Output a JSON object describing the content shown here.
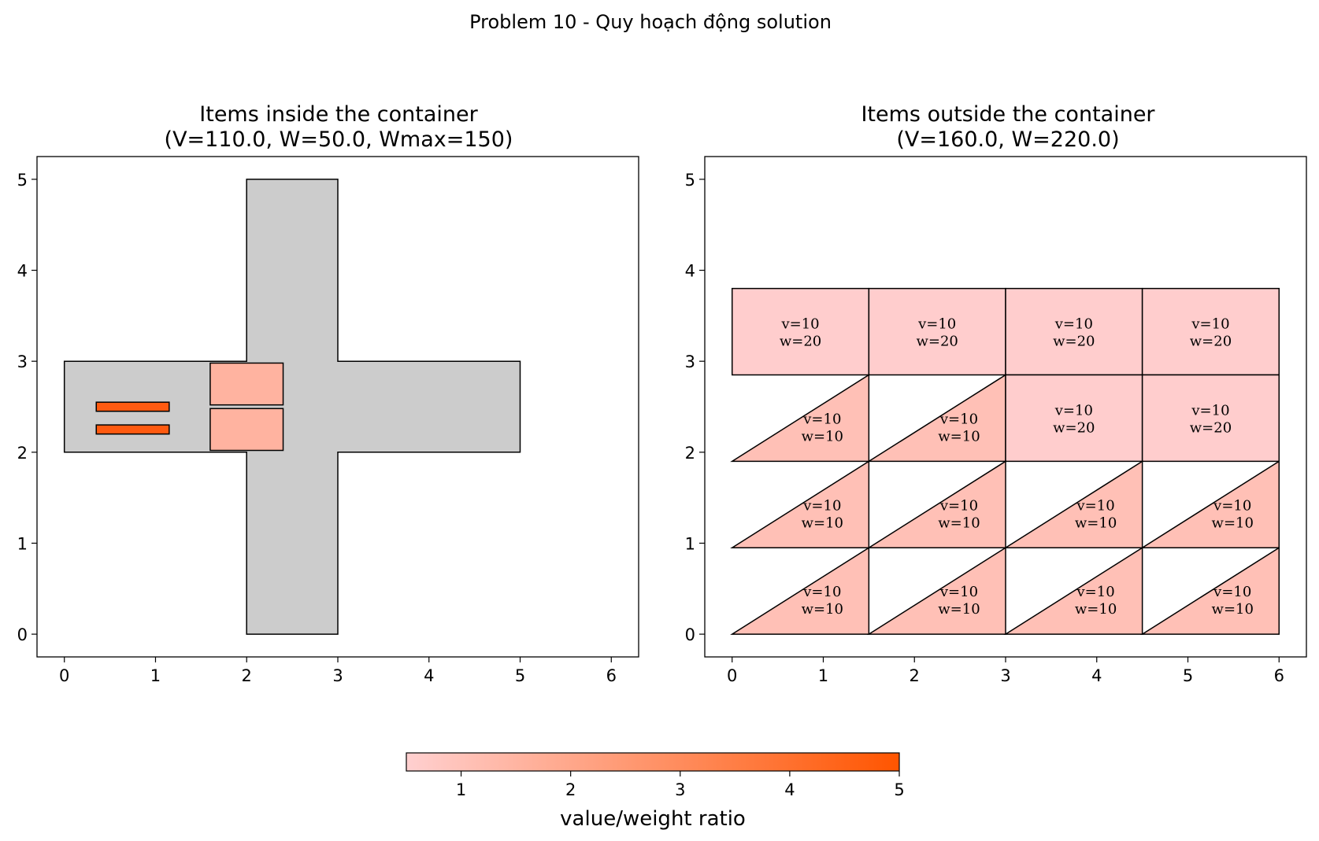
{
  "suptitle": "Problem 10 - Quy hoạch động solution",
  "colors": {
    "container": "#cccccc",
    "edge": "#000000",
    "cmap_low": "#ffd0d0",
    "cmap_high": "#ff5500"
  },
  "chart_data": [
    {
      "type": "scatter",
      "title_line1": "Items inside the container",
      "title_line2": "(V=110.0, W=50.0, Wmax=150)",
      "xlim": [
        -0.3,
        6.3
      ],
      "ylim": [
        -0.25,
        5.25
      ],
      "xticks": [
        "0",
        "1",
        "2",
        "3",
        "4",
        "5",
        "6"
      ],
      "yticks": [
        "0",
        "1",
        "2",
        "3",
        "4",
        "5"
      ],
      "grid": false,
      "container_polygon": [
        [
          2,
          0
        ],
        [
          3,
          0
        ],
        [
          3,
          2
        ],
        [
          5,
          2
        ],
        [
          5,
          3
        ],
        [
          3,
          3
        ],
        [
          3,
          5
        ],
        [
          2,
          5
        ],
        [
          2,
          3
        ],
        [
          0,
          3
        ],
        [
          0,
          2
        ],
        [
          2,
          2
        ]
      ],
      "items": [
        {
          "shape": "rect",
          "x": 1.6,
          "y": 2.52,
          "w": 0.8,
          "h": 0.46,
          "ratio": 2.0,
          "color": "#ffb3a0"
        },
        {
          "shape": "rect",
          "x": 1.6,
          "y": 2.02,
          "w": 0.8,
          "h": 0.46,
          "ratio": 2.0,
          "color": "#ffb3a0"
        },
        {
          "shape": "rect",
          "x": 0.35,
          "y": 2.45,
          "w": 0.8,
          "h": 0.1,
          "ratio": 5.0,
          "color": "#ff5a10"
        },
        {
          "shape": "rect",
          "x": 0.35,
          "y": 2.2,
          "w": 0.8,
          "h": 0.1,
          "ratio": 5.0,
          "color": "#ff5a10"
        }
      ]
    },
    {
      "type": "scatter",
      "title_line1": "Items outside the container",
      "title_line2": "(V=160.0, W=220.0)",
      "xlim": [
        -0.3,
        6.3
      ],
      "ylim": [
        -0.25,
        5.25
      ],
      "xticks": [
        "0",
        "1",
        "2",
        "3",
        "4",
        "5",
        "6"
      ],
      "yticks": [
        "0",
        "1",
        "2",
        "3",
        "4",
        "5"
      ],
      "grid": false,
      "items": [
        {
          "shape": "rect",
          "x": 0,
          "y": 2.85,
          "w": 1.5,
          "h": 0.95,
          "line1": "v=10",
          "line2": "w=20",
          "ratio": 0.5,
          "color": "#ffcdcd"
        },
        {
          "shape": "rect",
          "x": 1.5,
          "y": 2.85,
          "w": 1.5,
          "h": 0.95,
          "line1": "v=10",
          "line2": "w=20",
          "ratio": 0.5,
          "color": "#ffcdcd"
        },
        {
          "shape": "rect",
          "x": 3,
          "y": 2.85,
          "w": 1.5,
          "h": 0.95,
          "line1": "v=10",
          "line2": "w=20",
          "ratio": 0.5,
          "color": "#ffcdcd"
        },
        {
          "shape": "rect",
          "x": 4.5,
          "y": 2.85,
          "w": 1.5,
          "h": 0.95,
          "line1": "v=10",
          "line2": "w=20",
          "ratio": 0.5,
          "color": "#ffcdcd"
        },
        {
          "shape": "tri",
          "x": 0,
          "y": 1.9,
          "w": 1.5,
          "h": 0.95,
          "line1": "v=10",
          "line2": "w=10",
          "ratio": 1.0,
          "color": "#ffc0b6"
        },
        {
          "shape": "tri",
          "x": 1.5,
          "y": 1.9,
          "w": 1.5,
          "h": 0.95,
          "line1": "v=10",
          "line2": "w=10",
          "ratio": 1.0,
          "color": "#ffc0b6"
        },
        {
          "shape": "rect",
          "x": 3,
          "y": 1.9,
          "w": 1.5,
          "h": 0.95,
          "line1": "v=10",
          "line2": "w=20",
          "ratio": 0.5,
          "color": "#ffcdcd"
        },
        {
          "shape": "rect",
          "x": 4.5,
          "y": 1.9,
          "w": 1.5,
          "h": 0.95,
          "line1": "v=10",
          "line2": "w=20",
          "ratio": 0.5,
          "color": "#ffcdcd"
        },
        {
          "shape": "tri",
          "x": 0,
          "y": 0.95,
          "w": 1.5,
          "h": 0.95,
          "line1": "v=10",
          "line2": "w=10",
          "ratio": 1.0,
          "color": "#ffc0b6"
        },
        {
          "shape": "tri",
          "x": 1.5,
          "y": 0.95,
          "w": 1.5,
          "h": 0.95,
          "line1": "v=10",
          "line2": "w=10",
          "ratio": 1.0,
          "color": "#ffc0b6"
        },
        {
          "shape": "tri",
          "x": 3,
          "y": 0.95,
          "w": 1.5,
          "h": 0.95,
          "line1": "v=10",
          "line2": "w=10",
          "ratio": 1.0,
          "color": "#ffc0b6"
        },
        {
          "shape": "tri",
          "x": 4.5,
          "y": 0.95,
          "w": 1.5,
          "h": 0.95,
          "line1": "v=10",
          "line2": "w=10",
          "ratio": 1.0,
          "color": "#ffc0b6"
        },
        {
          "shape": "tri",
          "x": 0,
          "y": 0,
          "w": 1.5,
          "h": 0.95,
          "line1": "v=10",
          "line2": "w=10",
          "ratio": 1.0,
          "color": "#ffc0b6"
        },
        {
          "shape": "tri",
          "x": 1.5,
          "y": 0,
          "w": 1.5,
          "h": 0.95,
          "line1": "v=10",
          "line2": "w=10",
          "ratio": 1.0,
          "color": "#ffc0b6"
        },
        {
          "shape": "tri",
          "x": 3,
          "y": 0,
          "w": 1.5,
          "h": 0.95,
          "line1": "v=10",
          "line2": "w=10",
          "ratio": 1.0,
          "color": "#ffc0b6"
        },
        {
          "shape": "tri",
          "x": 4.5,
          "y": 0,
          "w": 1.5,
          "h": 0.95,
          "line1": "v=10",
          "line2": "w=10",
          "ratio": 1.0,
          "color": "#ffc0b6"
        }
      ]
    }
  ],
  "colorbar": {
    "label": "value/weight ratio",
    "range": [
      0.5,
      5
    ],
    "ticks": [
      1,
      2,
      3,
      4,
      5
    ],
    "tick_labels": [
      "1",
      "2",
      "3",
      "4",
      "5"
    ]
  }
}
